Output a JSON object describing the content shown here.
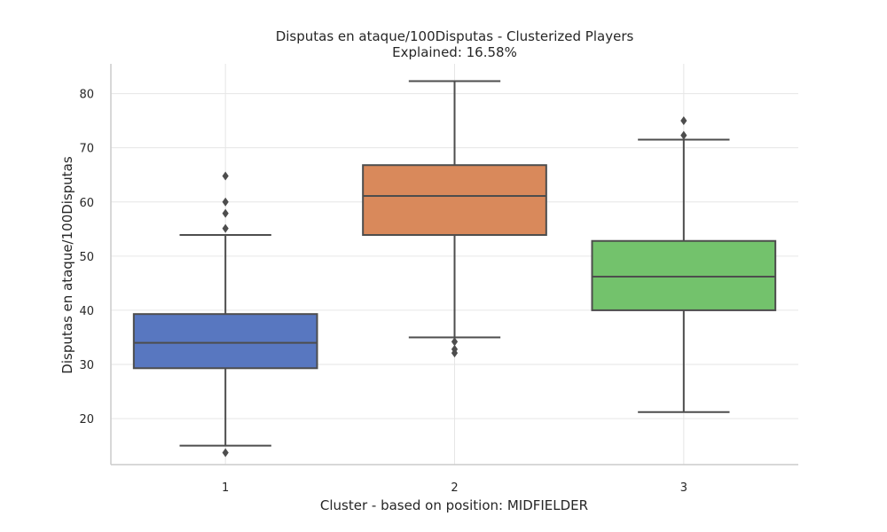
{
  "chart_data": {
    "type": "box",
    "title": "Disputas en ataque/100Disputas - Clusterized Players",
    "subtitle": "Explained: 16.58%",
    "xlabel": "Cluster - based on position: MIDFIELDER",
    "ylabel": "Disputas en ataque/100Disputas",
    "categories": [
      "1",
      "2",
      "3"
    ],
    "ylim": [
      11.5,
      85.5
    ],
    "yticks": [
      20,
      30,
      40,
      50,
      60,
      70,
      80
    ],
    "grid": true,
    "colors": [
      "#5877c0",
      "#d9895b",
      "#73c26c"
    ],
    "boxes": [
      {
        "category": "1",
        "whisker_low": 15.0,
        "q1": 29.3,
        "median": 34.0,
        "q3": 39.3,
        "whisker_high": 53.9,
        "outliers": [
          13.7,
          55.1,
          57.9,
          60.0,
          64.8
        ]
      },
      {
        "category": "2",
        "whisker_low": 35.0,
        "q1": 53.9,
        "median": 61.1,
        "q3": 66.8,
        "whisker_high": 82.3,
        "outliers": [
          32.1,
          32.8,
          34.2
        ]
      },
      {
        "category": "3",
        "whisker_low": 21.2,
        "q1": 40.0,
        "median": 46.2,
        "q3": 52.8,
        "whisker_high": 71.5,
        "outliers": [
          72.3,
          75.0
        ]
      }
    ]
  }
}
